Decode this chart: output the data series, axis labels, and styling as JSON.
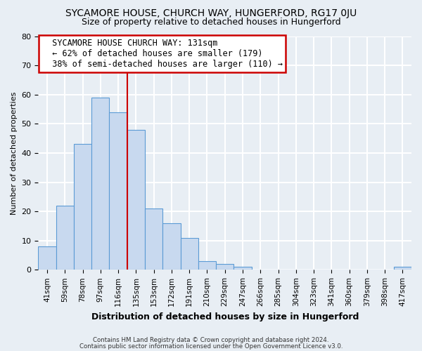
{
  "title": "SYCAMORE HOUSE, CHURCH WAY, HUNGERFORD, RG17 0JU",
  "subtitle": "Size of property relative to detached houses in Hungerford",
  "xlabel": "Distribution of detached houses by size in Hungerford",
  "ylabel": "Number of detached properties",
  "bin_labels": [
    "41sqm",
    "59sqm",
    "78sqm",
    "97sqm",
    "116sqm",
    "135sqm",
    "153sqm",
    "172sqm",
    "191sqm",
    "210sqm",
    "229sqm",
    "247sqm",
    "266sqm",
    "285sqm",
    "304sqm",
    "323sqm",
    "341sqm",
    "360sqm",
    "379sqm",
    "398sqm",
    "417sqm"
  ],
  "bar_heights": [
    8,
    22,
    43,
    59,
    54,
    48,
    21,
    16,
    11,
    3,
    2,
    1,
    0,
    0,
    0,
    0,
    0,
    0,
    0,
    0,
    1
  ],
  "bar_color": "#c8d9ef",
  "bar_edge_color": "#5b9bd5",
  "highlight_bar_index": 5,
  "highlight_color": "#cc0000",
  "annotation_title": "SYCAMORE HOUSE CHURCH WAY: 131sqm",
  "annotation_line1": "← 62% of detached houses are smaller (179)",
  "annotation_line2": "38% of semi-detached houses are larger (110) →",
  "annotation_box_color": "#ffffff",
  "annotation_box_edge": "#cc0000",
  "ylim": [
    0,
    80
  ],
  "yticks": [
    0,
    10,
    20,
    30,
    40,
    50,
    60,
    70,
    80
  ],
  "footer1": "Contains HM Land Registry data © Crown copyright and database right 2024.",
  "footer2": "Contains public sector information licensed under the Open Government Licence v3.0.",
  "background_color": "#e8eef4",
  "plot_bg_color": "#e8eef4",
  "grid_color": "#ffffff",
  "title_fontsize": 10,
  "subtitle_fontsize": 9,
  "ylabel_fontsize": 8,
  "xlabel_fontsize": 9
}
